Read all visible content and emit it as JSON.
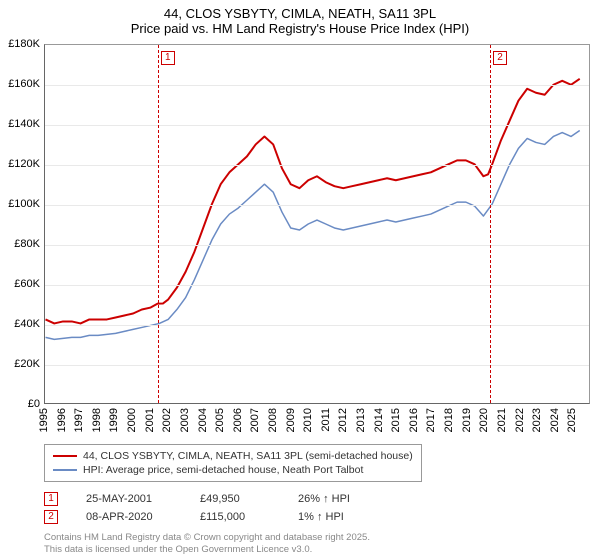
{
  "title": {
    "line1": "44, CLOS YSBYTY, CIMLA, NEATH, SA11 3PL",
    "line2": "Price paid vs. HM Land Registry's House Price Index (HPI)",
    "fontsize": 13,
    "color": "#000000"
  },
  "chart": {
    "type": "line",
    "plot_bg": "#ffffff",
    "grid_color": "#e9e9e9",
    "axis_color": "#666666",
    "x": {
      "min": 1995,
      "max": 2026,
      "ticks": [
        1995,
        1996,
        1997,
        1998,
        1999,
        2000,
        2001,
        2002,
        2003,
        2004,
        2005,
        2006,
        2007,
        2008,
        2009,
        2010,
        2011,
        2012,
        2013,
        2014,
        2015,
        2016,
        2017,
        2018,
        2019,
        2020,
        2021,
        2022,
        2023,
        2024,
        2025
      ],
      "tick_labels": [
        "1995",
        "1996",
        "1997",
        "1998",
        "1999",
        "2000",
        "2001",
        "2002",
        "2003",
        "2004",
        "2005",
        "2006",
        "2007",
        "2008",
        "2009",
        "2010",
        "2011",
        "2012",
        "2013",
        "2014",
        "2015",
        "2016",
        "2017",
        "2018",
        "2019",
        "2020",
        "2021",
        "2022",
        "2023",
        "2024",
        "2025"
      ],
      "label_fontsize": 11
    },
    "y": {
      "min": 0,
      "max": 180000,
      "ticks": [
        0,
        20000,
        40000,
        60000,
        80000,
        100000,
        120000,
        140000,
        160000,
        180000
      ],
      "tick_labels": [
        "£0",
        "£20K",
        "£40K",
        "£60K",
        "£80K",
        "£100K",
        "£120K",
        "£140K",
        "£160K",
        "£180K"
      ],
      "label_fontsize": 11
    },
    "series": [
      {
        "id": "price_paid",
        "label": "44, CLOS YSBYTY, CIMLA, NEATH, SA11 3PL (semi-detached house)",
        "color": "#cc0000",
        "line_width": 2,
        "points": [
          [
            1995.0,
            42000
          ],
          [
            1995.5,
            40000
          ],
          [
            1996.0,
            41000
          ],
          [
            1996.5,
            41000
          ],
          [
            1997.0,
            40000
          ],
          [
            1997.5,
            42000
          ],
          [
            1998.0,
            42000
          ],
          [
            1998.5,
            42000
          ],
          [
            1999.0,
            43000
          ],
          [
            1999.5,
            44000
          ],
          [
            2000.0,
            45000
          ],
          [
            2000.5,
            47000
          ],
          [
            2001.0,
            48000
          ],
          [
            2001.4,
            49950
          ],
          [
            2001.7,
            50000
          ],
          [
            2002.0,
            52000
          ],
          [
            2002.5,
            58000
          ],
          [
            2003.0,
            66000
          ],
          [
            2003.5,
            76000
          ],
          [
            2004.0,
            88000
          ],
          [
            2004.5,
            100000
          ],
          [
            2005.0,
            110000
          ],
          [
            2005.5,
            116000
          ],
          [
            2006.0,
            120000
          ],
          [
            2006.5,
            124000
          ],
          [
            2007.0,
            130000
          ],
          [
            2007.5,
            134000
          ],
          [
            2008.0,
            130000
          ],
          [
            2008.5,
            118000
          ],
          [
            2009.0,
            110000
          ],
          [
            2009.5,
            108000
          ],
          [
            2010.0,
            112000
          ],
          [
            2010.5,
            114000
          ],
          [
            2011.0,
            111000
          ],
          [
            2011.5,
            109000
          ],
          [
            2012.0,
            108000
          ],
          [
            2012.5,
            109000
          ],
          [
            2013.0,
            110000
          ],
          [
            2013.5,
            111000
          ],
          [
            2014.0,
            112000
          ],
          [
            2014.5,
            113000
          ],
          [
            2015.0,
            112000
          ],
          [
            2015.5,
            113000
          ],
          [
            2016.0,
            114000
          ],
          [
            2016.5,
            115000
          ],
          [
            2017.0,
            116000
          ],
          [
            2017.5,
            118000
          ],
          [
            2018.0,
            120000
          ],
          [
            2018.5,
            122000
          ],
          [
            2019.0,
            122000
          ],
          [
            2019.5,
            120000
          ],
          [
            2020.0,
            114000
          ],
          [
            2020.27,
            115000
          ],
          [
            2020.5,
            120000
          ],
          [
            2021.0,
            132000
          ],
          [
            2021.5,
            142000
          ],
          [
            2022.0,
            152000
          ],
          [
            2022.5,
            158000
          ],
          [
            2023.0,
            156000
          ],
          [
            2023.5,
            155000
          ],
          [
            2024.0,
            160000
          ],
          [
            2024.5,
            162000
          ],
          [
            2025.0,
            160000
          ],
          [
            2025.5,
            163000
          ]
        ]
      },
      {
        "id": "hpi",
        "label": "HPI: Average price, semi-detached house, Neath Port Talbot",
        "color": "#6a8bc4",
        "line_width": 1.5,
        "points": [
          [
            1995.0,
            33000
          ],
          [
            1995.5,
            32000
          ],
          [
            1996.0,
            32500
          ],
          [
            1996.5,
            33000
          ],
          [
            1997.0,
            33000
          ],
          [
            1997.5,
            34000
          ],
          [
            1998.0,
            34000
          ],
          [
            1998.5,
            34500
          ],
          [
            1999.0,
            35000
          ],
          [
            1999.5,
            36000
          ],
          [
            2000.0,
            37000
          ],
          [
            2000.5,
            38000
          ],
          [
            2001.0,
            39000
          ],
          [
            2001.5,
            40000
          ],
          [
            2002.0,
            42000
          ],
          [
            2002.5,
            47000
          ],
          [
            2003.0,
            53000
          ],
          [
            2003.5,
            62000
          ],
          [
            2004.0,
            72000
          ],
          [
            2004.5,
            82000
          ],
          [
            2005.0,
            90000
          ],
          [
            2005.5,
            95000
          ],
          [
            2006.0,
            98000
          ],
          [
            2006.5,
            102000
          ],
          [
            2007.0,
            106000
          ],
          [
            2007.5,
            110000
          ],
          [
            2008.0,
            106000
          ],
          [
            2008.5,
            96000
          ],
          [
            2009.0,
            88000
          ],
          [
            2009.5,
            87000
          ],
          [
            2010.0,
            90000
          ],
          [
            2010.5,
            92000
          ],
          [
            2011.0,
            90000
          ],
          [
            2011.5,
            88000
          ],
          [
            2012.0,
            87000
          ],
          [
            2012.5,
            88000
          ],
          [
            2013.0,
            89000
          ],
          [
            2013.5,
            90000
          ],
          [
            2014.0,
            91000
          ],
          [
            2014.5,
            92000
          ],
          [
            2015.0,
            91000
          ],
          [
            2015.5,
            92000
          ],
          [
            2016.0,
            93000
          ],
          [
            2016.5,
            94000
          ],
          [
            2017.0,
            95000
          ],
          [
            2017.5,
            97000
          ],
          [
            2018.0,
            99000
          ],
          [
            2018.5,
            101000
          ],
          [
            2019.0,
            101000
          ],
          [
            2019.5,
            99000
          ],
          [
            2020.0,
            94000
          ],
          [
            2020.5,
            100000
          ],
          [
            2021.0,
            110000
          ],
          [
            2021.5,
            120000
          ],
          [
            2022.0,
            128000
          ],
          [
            2022.5,
            133000
          ],
          [
            2023.0,
            131000
          ],
          [
            2023.5,
            130000
          ],
          [
            2024.0,
            134000
          ],
          [
            2024.5,
            136000
          ],
          [
            2025.0,
            134000
          ],
          [
            2025.5,
            137000
          ]
        ]
      }
    ],
    "markers": [
      {
        "n": "1",
        "x": 2001.4,
        "color": "#cc0000"
      },
      {
        "n": "2",
        "x": 2020.27,
        "color": "#cc0000"
      }
    ]
  },
  "legend": {
    "border_color": "#999999",
    "fontsize": 10.5
  },
  "sales": [
    {
      "n": "1",
      "date": "25-MAY-2001",
      "price": "£49,950",
      "pct": "26% ↑ HPI",
      "color": "#cc0000"
    },
    {
      "n": "2",
      "date": "08-APR-2020",
      "price": "£115,000",
      "pct": "1% ↑ HPI",
      "color": "#cc0000"
    }
  ],
  "footer": {
    "line1": "Contains HM Land Registry data © Crown copyright and database right 2025.",
    "line2": "This data is licensed under the Open Government Licence v3.0.",
    "fontsize": 9.5,
    "color": "#888888"
  }
}
